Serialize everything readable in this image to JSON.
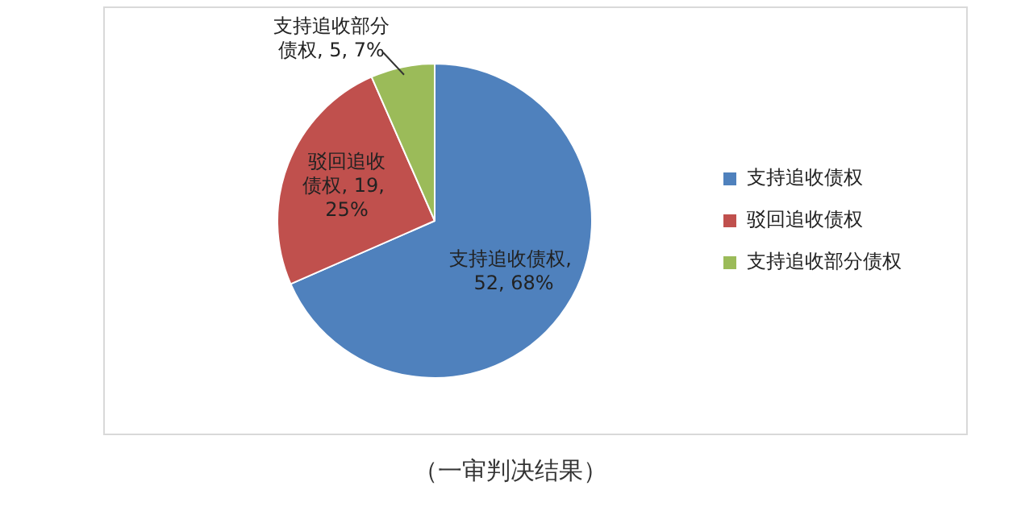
{
  "chart_data": {
    "type": "pie",
    "categories": [
      "支持追收债权",
      "驳回追收债权",
      "支持追收部分债权"
    ],
    "values": [
      52,
      19,
      5
    ],
    "colors": [
      "#4f81bd",
      "#c0504d",
      "#9bbb59"
    ],
    "value_labels": [
      "支持追收债权, 52, 68%",
      "驳回追收债权, 19, 25%",
      "支持追收部分债权, 5, 7%"
    ],
    "legend": "right",
    "annotations": [
      "（一审判决结果）"
    ]
  }
}
